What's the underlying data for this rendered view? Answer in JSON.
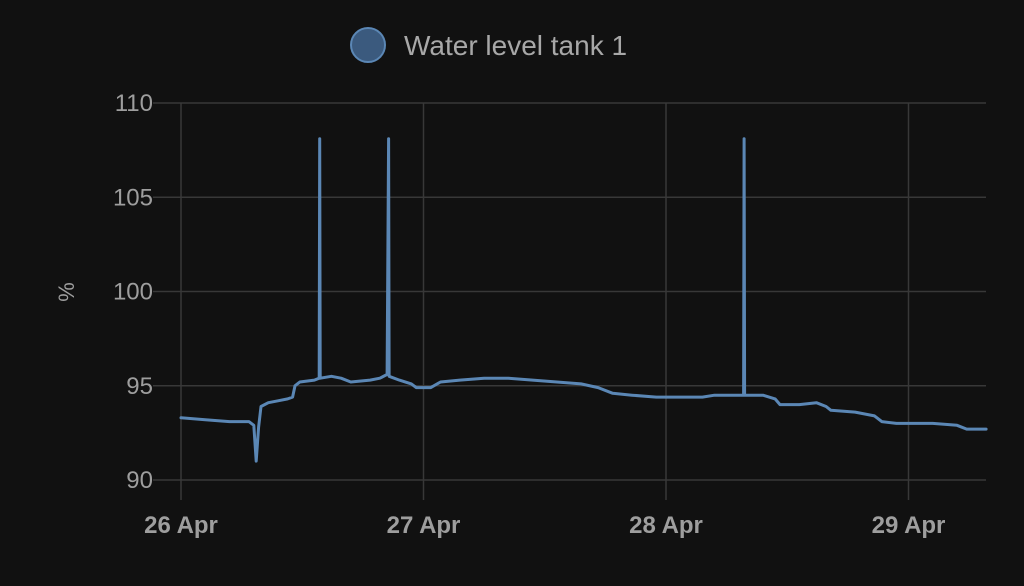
{
  "chart_data": {
    "type": "line",
    "ylabel": "%",
    "xlabel": "",
    "ylim": [
      90,
      110
    ],
    "y_ticks": [
      "110",
      "105",
      "100",
      "95",
      "90"
    ],
    "x_ticks": [
      "26 Apr",
      "27 Apr",
      "28 Apr",
      "29 Apr"
    ],
    "x_range_days": [
      0,
      3.32
    ],
    "grid": true,
    "legend_position": "top-center",
    "series": [
      {
        "name": "Water level tank 1",
        "color": "#5b87b5",
        "points": [
          [
            0.0,
            93.3
          ],
          [
            0.1,
            93.2
          ],
          [
            0.2,
            93.1
          ],
          [
            0.28,
            93.1
          ],
          [
            0.3,
            92.9
          ],
          [
            0.31,
            91.0
          ],
          [
            0.32,
            92.8
          ],
          [
            0.33,
            93.9
          ],
          [
            0.36,
            94.1
          ],
          [
            0.4,
            94.2
          ],
          [
            0.44,
            94.3
          ],
          [
            0.46,
            94.4
          ],
          [
            0.47,
            95.0
          ],
          [
            0.49,
            95.2
          ],
          [
            0.55,
            95.3
          ],
          [
            0.57,
            95.4
          ],
          [
            0.572,
            108.1
          ],
          [
            0.574,
            95.4
          ],
          [
            0.62,
            95.5
          ],
          [
            0.66,
            95.4
          ],
          [
            0.7,
            95.2
          ],
          [
            0.78,
            95.3
          ],
          [
            0.82,
            95.4
          ],
          [
            0.85,
            95.6
          ],
          [
            0.856,
            108.1
          ],
          [
            0.858,
            95.5
          ],
          [
            0.9,
            95.3
          ],
          [
            0.95,
            95.1
          ],
          [
            0.97,
            94.9
          ],
          [
            1.0,
            94.9
          ],
          [
            1.03,
            94.9
          ],
          [
            1.07,
            95.2
          ],
          [
            1.15,
            95.3
          ],
          [
            1.25,
            95.4
          ],
          [
            1.35,
            95.4
          ],
          [
            1.45,
            95.3
          ],
          [
            1.55,
            95.2
          ],
          [
            1.65,
            95.1
          ],
          [
            1.72,
            94.9
          ],
          [
            1.78,
            94.6
          ],
          [
            1.86,
            94.5
          ],
          [
            1.96,
            94.4
          ],
          [
            2.06,
            94.4
          ],
          [
            2.15,
            94.4
          ],
          [
            2.2,
            94.5
          ],
          [
            2.32,
            94.5
          ],
          [
            2.322,
            108.1
          ],
          [
            2.324,
            94.5
          ],
          [
            2.4,
            94.5
          ],
          [
            2.45,
            94.3
          ],
          [
            2.47,
            94.0
          ],
          [
            2.55,
            94.0
          ],
          [
            2.62,
            94.1
          ],
          [
            2.66,
            93.9
          ],
          [
            2.68,
            93.7
          ],
          [
            2.78,
            93.6
          ],
          [
            2.86,
            93.4
          ],
          [
            2.89,
            93.1
          ],
          [
            2.95,
            93.0
          ],
          [
            3.1,
            93.0
          ],
          [
            3.2,
            92.9
          ],
          [
            3.24,
            92.7
          ],
          [
            3.32,
            92.7
          ]
        ]
      }
    ]
  }
}
